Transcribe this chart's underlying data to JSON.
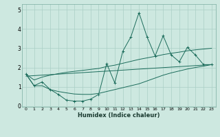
{
  "xlabel": "Humidex (Indice chaleur)",
  "ylabel": "",
  "xlim": [
    -0.5,
    23.5
  ],
  "ylim": [
    -0.05,
    5.3
  ],
  "yticks": [
    0,
    1,
    2,
    3,
    4,
    5
  ],
  "xticks": [
    0,
    1,
    2,
    3,
    4,
    5,
    6,
    7,
    8,
    9,
    10,
    11,
    12,
    13,
    14,
    15,
    16,
    17,
    18,
    19,
    20,
    21,
    22,
    23
  ],
  "bg_color": "#cde8e0",
  "grid_color": "#aacfc5",
  "line_color": "#1a6b5a",
  "main_line_x": [
    0,
    1,
    2,
    3,
    4,
    5,
    6,
    7,
    8,
    9,
    10,
    11,
    12,
    13,
    14,
    15,
    16,
    17,
    18,
    19,
    20,
    21,
    22,
    23
  ],
  "main_line_y": [
    1.65,
    1.05,
    1.25,
    0.85,
    0.6,
    0.3,
    0.25,
    0.25,
    0.35,
    0.6,
    2.2,
    1.2,
    2.85,
    3.6,
    4.85,
    3.6,
    2.6,
    3.65,
    2.65,
    2.3,
    3.05,
    2.65,
    2.15,
    2.15
  ],
  "upper_line_x": [
    0,
    1,
    2,
    3,
    4,
    5,
    6,
    7,
    8,
    9,
    10,
    11,
    12,
    13,
    14,
    15,
    16,
    17,
    18,
    19,
    20,
    21,
    22,
    23
  ],
  "upper_line_y": [
    1.65,
    1.35,
    1.5,
    1.6,
    1.68,
    1.75,
    1.8,
    1.85,
    1.9,
    1.95,
    2.05,
    2.12,
    2.22,
    2.32,
    2.42,
    2.5,
    2.58,
    2.67,
    2.74,
    2.8,
    2.87,
    2.92,
    2.96,
    3.0
  ],
  "lower_line_x": [
    0,
    1,
    2,
    3,
    4,
    5,
    6,
    7,
    8,
    9,
    10,
    11,
    12,
    13,
    14,
    15,
    16,
    17,
    18,
    19,
    20,
    21,
    22,
    23
  ],
  "lower_line_y": [
    1.65,
    1.05,
    1.05,
    0.85,
    0.75,
    0.68,
    0.62,
    0.6,
    0.6,
    0.65,
    0.75,
    0.85,
    0.95,
    1.05,
    1.15,
    1.3,
    1.45,
    1.6,
    1.72,
    1.82,
    1.92,
    2.0,
    2.07,
    2.15
  ],
  "trend_line_x": [
    0,
    23
  ],
  "trend_line_y": [
    1.55,
    2.15
  ]
}
